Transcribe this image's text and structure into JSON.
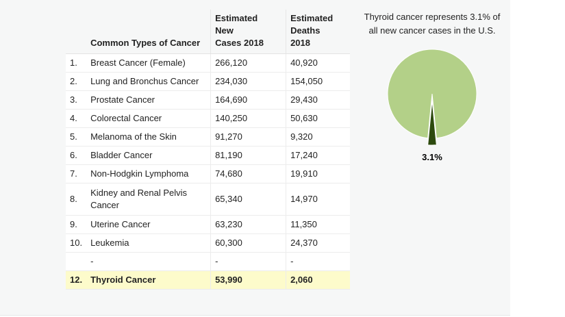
{
  "table": {
    "headers": [
      "",
      "Common Types of Cancer",
      "Estimated New Cases 2018",
      "Estimated Deaths 2018"
    ],
    "header_lines": {
      "c2": [
        "Estimated",
        "New",
        "Cases 2018"
      ],
      "c3": [
        "Estimated",
        "Deaths",
        "2018"
      ]
    },
    "rows": [
      {
        "num": "1.",
        "name": "Breast Cancer (Female)",
        "cases": "266,120",
        "deaths": "40,920"
      },
      {
        "num": "2.",
        "name": "Lung and Bronchus Cancer",
        "cases": "234,030",
        "deaths": "154,050"
      },
      {
        "num": "3.",
        "name": "Prostate Cancer",
        "cases": "164,690",
        "deaths": "29,430"
      },
      {
        "num": "4.",
        "name": "Colorectal Cancer",
        "cases": "140,250",
        "deaths": "50,630"
      },
      {
        "num": "5.",
        "name": "Melanoma of the Skin",
        "cases": "91,270",
        "deaths": "9,320"
      },
      {
        "num": "6.",
        "name": "Bladder Cancer",
        "cases": "81,190",
        "deaths": "17,240"
      },
      {
        "num": "7.",
        "name": "Non-Hodgkin Lymphoma",
        "cases": "74,680",
        "deaths": "19,910"
      },
      {
        "num": "8.",
        "name": "Kidney and Renal Pelvis Cancer",
        "cases": "65,340",
        "deaths": "14,970"
      },
      {
        "num": "9.",
        "name": "Uterine Cancer",
        "cases": "63,230",
        "deaths": "11,350"
      },
      {
        "num": "10.",
        "name": "Leukemia",
        "cases": "60,300",
        "deaths": "24,370"
      },
      {
        "num": "",
        "name": "-",
        "cases": "-",
        "deaths": "-"
      },
      {
        "num": "12.",
        "name": "Thyroid Cancer",
        "cases": "53,990",
        "deaths": "2,060"
      }
    ]
  },
  "chart_data": {
    "type": "pie",
    "title": "Thyroid cancer represents 3.1% of all new cancer cases in the U.S.",
    "slices": [
      {
        "value": 3.1,
        "label": "3.1%",
        "color": "#2d4a0e"
      },
      {
        "value": 96.9,
        "label": "",
        "color": "#b3d088"
      }
    ]
  }
}
